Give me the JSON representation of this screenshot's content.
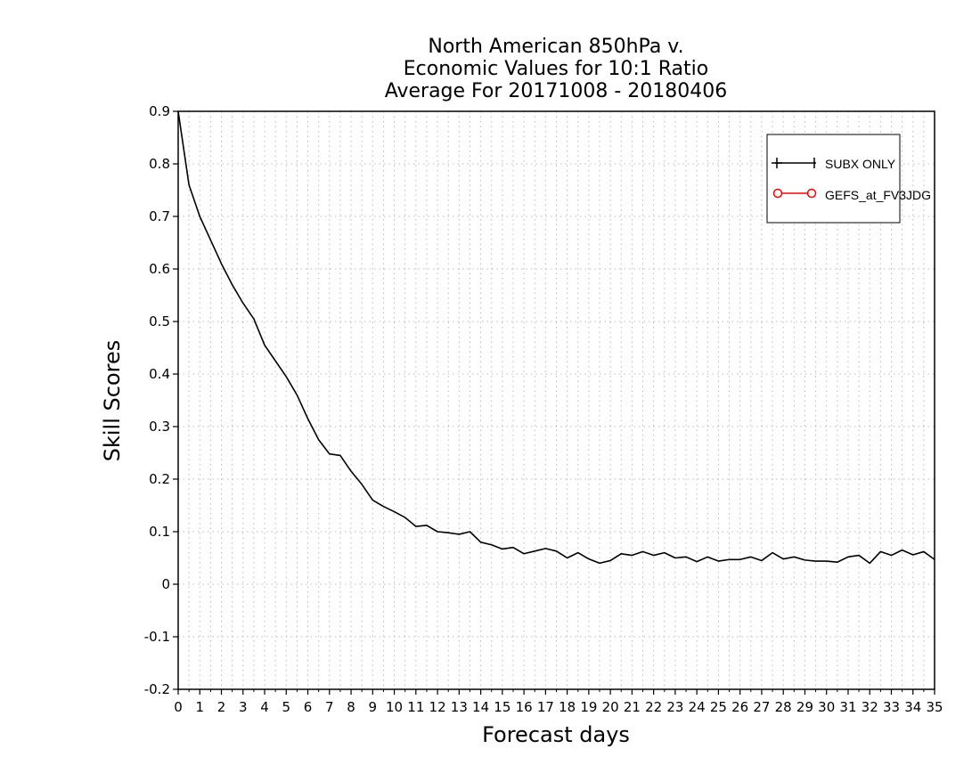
{
  "chart_data": {
    "type": "line",
    "title_lines": [
      "North American 850hPa v.",
      "Economic Values for 10:1 Ratio",
      "Average For 20171008 - 20180406"
    ],
    "xlabel": "Forecast days",
    "ylabel": "Skill Scores",
    "xlim": [
      0,
      35
    ],
    "ylim": [
      -0.2,
      0.9
    ],
    "x_ticks": [
      "0",
      "1",
      "2",
      "3",
      "4",
      "5",
      "6",
      "7",
      "8",
      "9",
      "10",
      "11",
      "12",
      "13",
      "14",
      "15",
      "16",
      "17",
      "18",
      "19",
      "20",
      "21",
      "22",
      "23",
      "24",
      "25",
      "26",
      "27",
      "28",
      "29",
      "30",
      "31",
      "32",
      "33",
      "34",
      "35"
    ],
    "y_ticks": [
      "-0.2",
      "-0.1",
      "0",
      "0.1",
      "0.2",
      "0.3",
      "0.4",
      "0.5",
      "0.6",
      "0.7",
      "0.8",
      "0.9"
    ],
    "grid": true,
    "legend_position": "top-right",
    "series": [
      {
        "name": "SUBX ONLY",
        "color": "#000000",
        "marker": "plus",
        "x": [
          0,
          0.5,
          1,
          1.5,
          2,
          2.5,
          3,
          3.5,
          4,
          4.5,
          5,
          5.5,
          6,
          6.5,
          7,
          7.5,
          8,
          8.5,
          9,
          9.5,
          10,
          10.5,
          11,
          11.5,
          12,
          12.5,
          13,
          13.5,
          14,
          14.5,
          15,
          15.5,
          16,
          16.5,
          17,
          17.5,
          18,
          18.5,
          19,
          19.5,
          20,
          20.5,
          21,
          21.5,
          22,
          22.5,
          23,
          23.5,
          24,
          24.5,
          25,
          25.5,
          26,
          26.5,
          27,
          27.5,
          28,
          28.5,
          29,
          29.5,
          30,
          30.5,
          31,
          31.5,
          32,
          32.5,
          33,
          33.5,
          34,
          34.5,
          35
        ],
        "y": [
          0.9,
          0.76,
          0.7,
          0.655,
          0.61,
          0.57,
          0.535,
          0.505,
          0.455,
          0.425,
          0.395,
          0.36,
          0.315,
          0.275,
          0.248,
          0.245,
          0.215,
          0.19,
          0.16,
          0.148,
          0.138,
          0.127,
          0.11,
          0.112,
          0.1,
          0.098,
          0.095,
          0.1,
          0.08,
          0.075,
          0.067,
          0.07,
          0.058,
          0.063,
          0.068,
          0.063,
          0.05,
          0.06,
          0.048,
          0.04,
          0.045,
          0.058,
          0.055,
          0.062,
          0.055,
          0.06,
          0.05,
          0.052,
          0.043,
          0.052,
          0.044,
          0.047,
          0.047,
          0.052,
          0.045,
          0.06,
          0.048,
          0.052,
          0.046,
          0.044,
          0.044,
          0.042,
          0.052,
          0.055,
          0.04,
          0.062,
          0.055,
          0.065,
          0.056,
          0.062,
          0.047
        ]
      },
      {
        "name": "GEFS_at_FV3JDG",
        "color": "#ff0000",
        "marker": "circle",
        "x": [],
        "y": []
      }
    ]
  }
}
